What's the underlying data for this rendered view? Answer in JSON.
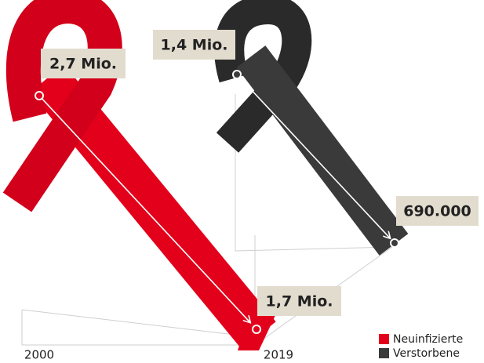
{
  "chart_data": {
    "type": "ribbon",
    "categories": [
      "2000",
      "2019"
    ],
    "series": [
      {
        "name": "Neuinfizierte",
        "color": "#e3001b",
        "values": [
          2700000,
          1700000
        ],
        "value_labels": [
          "2,7 Mio.",
          "1,7 Mio."
        ]
      },
      {
        "name": "Verstorbene",
        "color": "#3a3a3a",
        "values": [
          1400000,
          690000
        ],
        "value_labels": [
          "1,4 Mio.",
          "690.000"
        ]
      }
    ]
  }
}
